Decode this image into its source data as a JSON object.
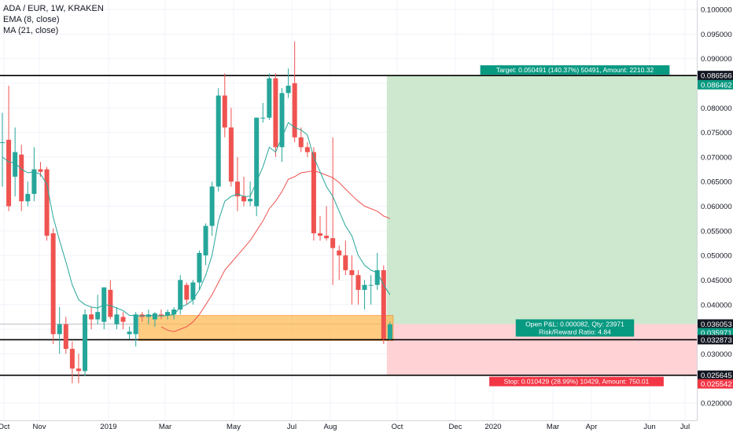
{
  "legend": {
    "symbol": "ADA / EUR, 1W, KRAKEN",
    "ema": "EMA (8, close)",
    "ma": "MA (21, close)"
  },
  "colors": {
    "up": "#26a69a",
    "down": "#ef5350",
    "ema": "#26a69a",
    "ma": "#ef5350",
    "profit_zone": "#c8e6c9",
    "loss_zone": "#ffcdd2",
    "support_zone": "#ffb74d",
    "label_green": "#089981",
    "label_red": "#f23645",
    "price_tag": "#131722"
  },
  "chart_data": {
    "type": "candlestick",
    "y_axis": {
      "ylim": [
        0.015,
        0.1015
      ],
      "ticks": [
        "0.100000",
        "0.095000",
        "0.090000",
        "0.085000",
        "0.080000",
        "0.075000",
        "0.070000",
        "0.065000",
        "0.060000",
        "0.055000",
        "0.050000",
        "0.045000",
        "0.040000",
        "0.035000",
        "0.030000",
        "0.025000",
        "0.020000"
      ]
    },
    "x_axis": {
      "ticks": [
        "Oct",
        "Nov",
        "2019",
        "Mar",
        "May",
        "Jul",
        "Aug",
        "Oct",
        "Dec",
        "2020",
        "Mar",
        "Apr",
        "Jun",
        "Jul"
      ]
    },
    "candles": [
      {
        "o": 0.073,
        "h": 0.079,
        "l": 0.064,
        "c": 0.073
      },
      {
        "o": 0.0735,
        "h": 0.0845,
        "l": 0.059,
        "c": 0.06
      },
      {
        "o": 0.066,
        "h": 0.076,
        "l": 0.062,
        "c": 0.071
      },
      {
        "o": 0.0705,
        "h": 0.0725,
        "l": 0.059,
        "c": 0.061
      },
      {
        "o": 0.061,
        "h": 0.065,
        "l": 0.06,
        "c": 0.0625
      },
      {
        "o": 0.0625,
        "h": 0.072,
        "l": 0.061,
        "c": 0.0675
      },
      {
        "o": 0.0675,
        "h": 0.069,
        "l": 0.066,
        "c": 0.067
      },
      {
        "o": 0.0675,
        "h": 0.068,
        "l": 0.053,
        "c": 0.054
      },
      {
        "o": 0.0545,
        "h": 0.0555,
        "l": 0.032,
        "c": 0.034
      },
      {
        "o": 0.034,
        "h": 0.0395,
        "l": 0.03,
        "c": 0.036
      },
      {
        "o": 0.036,
        "h": 0.0375,
        "l": 0.03,
        "c": 0.031
      },
      {
        "o": 0.031,
        "h": 0.0325,
        "l": 0.024,
        "c": 0.027
      },
      {
        "o": 0.027,
        "h": 0.03,
        "l": 0.024,
        "c": 0.0265
      },
      {
        "o": 0.0265,
        "h": 0.039,
        "l": 0.0255,
        "c": 0.038
      },
      {
        "o": 0.038,
        "h": 0.0395,
        "l": 0.035,
        "c": 0.037
      },
      {
        "o": 0.037,
        "h": 0.042,
        "l": 0.036,
        "c": 0.0385
      },
      {
        "o": 0.0365,
        "h": 0.0435,
        "l": 0.035,
        "c": 0.0435
      },
      {
        "o": 0.043,
        "h": 0.045,
        "l": 0.037,
        "c": 0.0375
      },
      {
        "o": 0.036,
        "h": 0.0395,
        "l": 0.035,
        "c": 0.038
      },
      {
        "o": 0.0375,
        "h": 0.0385,
        "l": 0.035,
        "c": 0.0365
      },
      {
        "o": 0.034,
        "h": 0.0355,
        "l": 0.033,
        "c": 0.0345
      },
      {
        "o": 0.034,
        "h": 0.0385,
        "l": 0.0315,
        "c": 0.038
      },
      {
        "o": 0.038,
        "h": 0.0385,
        "l": 0.0365,
        "c": 0.0375
      },
      {
        "o": 0.0375,
        "h": 0.039,
        "l": 0.036,
        "c": 0.038
      },
      {
        "o": 0.037,
        "h": 0.0385,
        "l": 0.0355,
        "c": 0.0382
      },
      {
        "o": 0.038,
        "h": 0.039,
        "l": 0.037,
        "c": 0.0378
      },
      {
        "o": 0.0378,
        "h": 0.039,
        "l": 0.037,
        "c": 0.0385
      },
      {
        "o": 0.038,
        "h": 0.0395,
        "l": 0.037,
        "c": 0.039
      },
      {
        "o": 0.039,
        "h": 0.046,
        "l": 0.038,
        "c": 0.045
      },
      {
        "o": 0.044,
        "h": 0.0445,
        "l": 0.04,
        "c": 0.041
      },
      {
        "o": 0.041,
        "h": 0.045,
        "l": 0.04,
        "c": 0.0445
      },
      {
        "o": 0.0445,
        "h": 0.051,
        "l": 0.043,
        "c": 0.0505
      },
      {
        "o": 0.05,
        "h": 0.0565,
        "l": 0.048,
        "c": 0.056
      },
      {
        "o": 0.056,
        "h": 0.065,
        "l": 0.054,
        "c": 0.064
      },
      {
        "o": 0.064,
        "h": 0.084,
        "l": 0.063,
        "c": 0.0825
      },
      {
        "o": 0.0825,
        "h": 0.087,
        "l": 0.074,
        "c": 0.076
      },
      {
        "o": 0.076,
        "h": 0.08,
        "l": 0.064,
        "c": 0.065
      },
      {
        "o": 0.065,
        "h": 0.07,
        "l": 0.059,
        "c": 0.062
      },
      {
        "o": 0.062,
        "h": 0.066,
        "l": 0.06,
        "c": 0.061
      },
      {
        "o": 0.061,
        "h": 0.065,
        "l": 0.06,
        "c": 0.0615
      },
      {
        "o": 0.06,
        "h": 0.078,
        "l": 0.058,
        "c": 0.078
      },
      {
        "o": 0.078,
        "h": 0.081,
        "l": 0.077,
        "c": 0.078
      },
      {
        "o": 0.078,
        "h": 0.087,
        "l": 0.0775,
        "c": 0.086
      },
      {
        "o": 0.086,
        "h": 0.087,
        "l": 0.07,
        "c": 0.072
      },
      {
        "o": 0.072,
        "h": 0.084,
        "l": 0.069,
        "c": 0.083
      },
      {
        "o": 0.083,
        "h": 0.088,
        "l": 0.082,
        "c": 0.0845
      },
      {
        "o": 0.085,
        "h": 0.0935,
        "l": 0.073,
        "c": 0.074
      },
      {
        "o": 0.074,
        "h": 0.076,
        "l": 0.071,
        "c": 0.072
      },
      {
        "o": 0.072,
        "h": 0.073,
        "l": 0.07,
        "c": 0.071
      },
      {
        "o": 0.071,
        "h": 0.072,
        "l": 0.053,
        "c": 0.0545
      },
      {
        "o": 0.0545,
        "h": 0.058,
        "l": 0.053,
        "c": 0.054
      },
      {
        "o": 0.054,
        "h": 0.06,
        "l": 0.053,
        "c": 0.0535
      },
      {
        "o": 0.0535,
        "h": 0.074,
        "l": 0.044,
        "c": 0.0515
      },
      {
        "o": 0.051,
        "h": 0.052,
        "l": 0.045,
        "c": 0.05
      },
      {
        "o": 0.05,
        "h": 0.053,
        "l": 0.046,
        "c": 0.047
      },
      {
        "o": 0.047,
        "h": 0.05,
        "l": 0.04,
        "c": 0.046
      },
      {
        "o": 0.046,
        "h": 0.047,
        "l": 0.04,
        "c": 0.043
      },
      {
        "o": 0.043,
        "h": 0.045,
        "l": 0.039,
        "c": 0.044
      },
      {
        "o": 0.044,
        "h": 0.046,
        "l": 0.04,
        "c": 0.044
      },
      {
        "o": 0.044,
        "h": 0.0505,
        "l": 0.043,
        "c": 0.047
      },
      {
        "o": 0.047,
        "h": 0.048,
        "l": 0.032,
        "c": 0.033
      },
      {
        "o": 0.033,
        "h": 0.0365,
        "l": 0.0328,
        "c": 0.036
      }
    ],
    "ema_8": [
      0.07,
      0.069,
      0.0688,
      0.0675,
      0.0668,
      0.067,
      0.0665,
      0.0645,
      0.0578,
      0.053,
      0.0487,
      0.044,
      0.041,
      0.04,
      0.0395,
      0.0393,
      0.04,
      0.0398,
      0.0393,
      0.0388,
      0.0378,
      0.0378,
      0.0377,
      0.0378,
      0.0378,
      0.0377,
      0.0378,
      0.038,
      0.0395,
      0.04,
      0.041,
      0.043,
      0.046,
      0.05,
      0.057,
      0.061,
      0.062,
      0.0625,
      0.062,
      0.062,
      0.065,
      0.068,
      0.072,
      0.071,
      0.074,
      0.077,
      0.076,
      0.0755,
      0.0745,
      0.07,
      0.067,
      0.064,
      0.062,
      0.059,
      0.056,
      0.054,
      0.05,
      0.048,
      0.047,
      0.0465,
      0.044,
      0.042
    ],
    "ma_21": [
      null,
      null,
      null,
      null,
      null,
      null,
      null,
      null,
      null,
      null,
      null,
      null,
      null,
      null,
      null,
      null,
      null,
      null,
      null,
      null,
      null,
      null,
      null,
      null,
      null,
      0.0355,
      0.0348,
      0.0345,
      0.035,
      0.0355,
      0.0365,
      0.038,
      0.04,
      0.042,
      0.0445,
      0.047,
      0.0485,
      0.05,
      0.0515,
      0.053,
      0.055,
      0.057,
      0.0595,
      0.061,
      0.063,
      0.0655,
      0.066,
      0.0668,
      0.067,
      0.0672,
      0.0668,
      0.0663,
      0.0658,
      0.0648,
      0.0635,
      0.0622,
      0.061,
      0.06,
      0.0595,
      0.059,
      0.058,
      0.0575
    ],
    "horizontal_lines": [
      0.08656,
      0.03287,
      0.02564
    ],
    "support_zone": {
      "y1": 0.0327,
      "y2": 0.0378,
      "from_candle": 22,
      "to_candle": 61
    },
    "position": {
      "type": "long",
      "entry": 0.036053,
      "target": 0.086566,
      "stop": 0.025642,
      "target_label": "Target: 0.050491 (140.37%) 50491, Amount: 2210.32",
      "stop_label": "Stop: 0.010429 (28.99%) 10429, Amount: 750.01",
      "pnl_label": "Open P&L: 0.000082, Qty: 23971",
      "rr_label": "Risk/Reward Ratio: 4.84"
    },
    "price_tags": [
      {
        "value": "0.086566",
        "y": 0.086566,
        "style": "dark"
      },
      {
        "value": "0.086462",
        "y": 0.0847,
        "style": "green"
      },
      {
        "value": "0.036053",
        "y": 0.036053,
        "style": "dark"
      },
      {
        "value": "0.035971",
        "y": 0.0343,
        "style": "green"
      },
      {
        "value": "0.032873",
        "y": 0.032873,
        "style": "dark"
      },
      {
        "value": "0.025645",
        "y": 0.025645,
        "style": "dark"
      },
      {
        "value": "0.025542",
        "y": 0.0239,
        "style": "red"
      }
    ]
  }
}
